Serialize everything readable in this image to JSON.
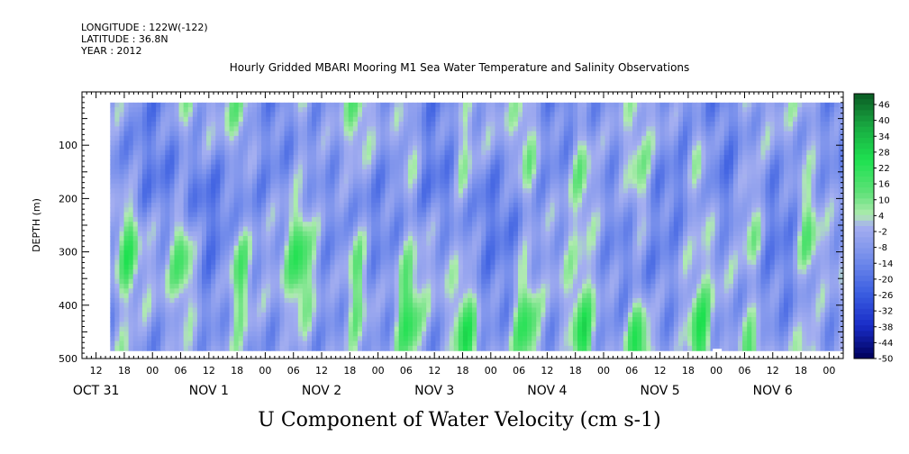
{
  "header": {
    "longitude": "LONGITUDE : 122W(-122)",
    "latitude": "LATITUDE : 36.8N",
    "year": "YEAR : 2012"
  },
  "chart_data": {
    "type": "heatmap",
    "title": "Hourly Gridded MBARI Mooring M1 Sea Water Temperature and Salinity Observations",
    "xlabel": "U Component of Water Velocity (cm s-1)",
    "ylabel": "DEPTH (m)",
    "y_axis": {
      "range": [
        500,
        0
      ],
      "inverted": true,
      "ticks": [
        100,
        200,
        300,
        400,
        500
      ],
      "data_range": [
        20,
        485
      ]
    },
    "x_axis": {
      "start": "2012-10-31T09:00",
      "end": "2012-11-07T03:00",
      "data_start": "2012-10-31T15:00",
      "data_end": "2012-11-07T03:00",
      "hour_tick_labels": [
        "12",
        "18",
        "00",
        "06",
        "12",
        "18",
        "00",
        "06",
        "12",
        "18",
        "00",
        "06",
        "12",
        "18",
        "00",
        "06",
        "12",
        "18",
        "00",
        "06",
        "12",
        "18",
        "00",
        "06",
        "12",
        "18",
        "00"
      ],
      "day_labels": [
        {
          "label": "OCT 31",
          "date": "2012-10-31T12:00"
        },
        {
          "label": "NOV  1",
          "date": "2012-11-01T12:00"
        },
        {
          "label": "NOV  2",
          "date": "2012-11-02T12:00"
        },
        {
          "label": "NOV  3",
          "date": "2012-11-03T12:00"
        },
        {
          "label": "NOV  4",
          "date": "2012-11-04T12:00"
        },
        {
          "label": "NOV  5",
          "date": "2012-11-05T12:00"
        },
        {
          "label": "NOV  6",
          "date": "2012-11-06T12:00"
        }
      ]
    },
    "colorbar": {
      "range": [
        -50,
        46
      ],
      "labels": [
        "46",
        "40",
        "34",
        "28",
        "22",
        "16",
        "10",
        "4",
        "-2",
        "-8",
        "-14",
        "-20",
        "-26",
        "-32",
        "-38",
        "-44",
        "-50"
      ]
    },
    "field_summary": {
      "note_positive_columns_hours": [
        3,
        15,
        27,
        40,
        52,
        63,
        75,
        88,
        100,
        112,
        125,
        136,
        148,
        160
      ],
      "missing_patch": {
        "date": "2012-11-06T00:00",
        "depth": [
          470,
          485
        ]
      }
    }
  }
}
